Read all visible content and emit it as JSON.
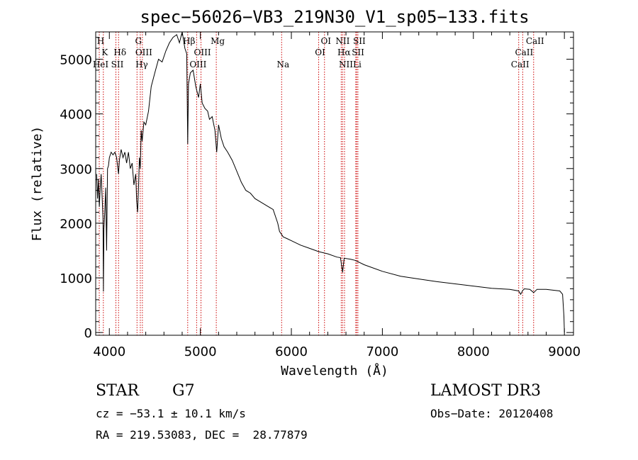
{
  "chart_data": {
    "type": "line",
    "title": "spec−56026−VB3_219N30_V1_sp05−133.fits",
    "xlabel": "Wavelength (Å)",
    "ylabel": "Flux (relative)",
    "xlim": [
      3850,
      9100
    ],
    "ylim": [
      -50,
      5500
    ],
    "x_ticks": [
      4000,
      5000,
      6000,
      7000,
      8000,
      9000
    ],
    "y_ticks": [
      0,
      1000,
      2000,
      3000,
      4000,
      5000
    ],
    "series": [
      {
        "name": "spectrum",
        "x": [
          3860,
          3870,
          3880,
          3890,
          3900,
          3910,
          3920,
          3930,
          3935,
          3940,
          3950,
          3960,
          3970,
          3980,
          3990,
          4000,
          4020,
          4040,
          4060,
          4080,
          4101,
          4110,
          4130,
          4150,
          4170,
          4190,
          4210,
          4230,
          4250,
          4270,
          4290,
          4300,
          4310,
          4320,
          4330,
          4340,
          4350,
          4360,
          4380,
          4400,
          4430,
          4460,
          4500,
          4540,
          4580,
          4620,
          4660,
          4700,
          4740,
          4770,
          4800,
          4830,
          4850,
          4861,
          4870,
          4890,
          4920,
          4950,
          4980,
          5000,
          5020,
          5050,
          5080,
          5100,
          5130,
          5160,
          5180,
          5200,
          5230,
          5260,
          5300,
          5350,
          5400,
          5450,
          5500,
          5550,
          5600,
          5650,
          5700,
          5750,
          5800,
          5850,
          5870,
          5890,
          5910,
          5950,
          6000,
          6100,
          6200,
          6300,
          6400,
          6500,
          6540,
          6563,
          6580,
          6650,
          6700,
          6800,
          7000,
          7200,
          7400,
          7600,
          7800,
          8000,
          8200,
          8400,
          8498,
          8520,
          8542,
          8560,
          8620,
          8662,
          8700,
          8800,
          8900,
          8950,
          8980,
          8995,
          9000
        ],
        "values": [
          2900,
          2450,
          2800,
          2300,
          2650,
          2900,
          2500,
          2100,
          750,
          1900,
          2200,
          2650,
          1500,
          3000,
          3050,
          3200,
          3300,
          3250,
          3300,
          3200,
          2900,
          3150,
          3350,
          3200,
          3300,
          3100,
          3300,
          3000,
          3100,
          2700,
          2900,
          2400,
          2200,
          2600,
          3200,
          3000,
          3700,
          3500,
          3850,
          3800,
          4050,
          4500,
          4750,
          5000,
          4950,
          5150,
          5300,
          5400,
          5450,
          5300,
          5500,
          5200,
          5100,
          3450,
          4550,
          4750,
          4800,
          4500,
          4300,
          4550,
          4200,
          4100,
          4050,
          3900,
          3950,
          3700,
          3300,
          3800,
          3550,
          3400,
          3300,
          3150,
          2950,
          2750,
          2600,
          2550,
          2450,
          2400,
          2350,
          2300,
          2250,
          2000,
          1850,
          1800,
          1750,
          1720,
          1680,
          1600,
          1540,
          1480,
          1440,
          1380,
          1370,
          1100,
          1360,
          1340,
          1320,
          1240,
          1120,
          1030,
          980,
          930,
          890,
          850,
          810,
          790,
          760,
          700,
          770,
          800,
          790,
          730,
          790,
          790,
          770,
          760,
          700,
          300,
          0
        ]
      }
    ],
    "lines": [
      {
        "name": "H",
        "x": 3889,
        "row": 0
      },
      {
        "name": "K",
        "x": 3934,
        "row": 1
      },
      {
        "name": "HeI",
        "x": 3889,
        "row": 2
      },
      {
        "name": "SII",
        "x": 4072,
        "row": 2
      },
      {
        "name": "Hδ",
        "x": 4101,
        "row": 1
      },
      {
        "name": "G",
        "x": 4304,
        "row": 0
      },
      {
        "name": "OIII",
        "x": 4363,
        "row": 1
      },
      {
        "name": "Hγ",
        "x": 4340,
        "row": 2
      },
      {
        "name": "Hβ",
        "x": 4861,
        "row": 0
      },
      {
        "name": "OIII",
        "x": 5007,
        "row": 1
      },
      {
        "name": "OIII",
        "x": 4959,
        "row": 2
      },
      {
        "name": "Mg",
        "x": 5175,
        "row": 0
      },
      {
        "name": "Na",
        "x": 5893,
        "row": 2
      },
      {
        "name": "OI",
        "x": 6364,
        "row": 0
      },
      {
        "name": "OI",
        "x": 6300,
        "row": 1
      },
      {
        "name": "NII",
        "x": 6548,
        "row": 0
      },
      {
        "name": "SII",
        "x": 6731,
        "row": 0
      },
      {
        "name": "Hα",
        "x": 6563,
        "row": 1
      },
      {
        "name": "SII",
        "x": 6717,
        "row": 1
      },
      {
        "name": "NII",
        "x": 6584,
        "row": 2
      },
      {
        "name": "Li",
        "x": 6708,
        "row": 2
      },
      {
        "name": "CaII",
        "x": 8662,
        "row": 0
      },
      {
        "name": "CaII",
        "x": 8542,
        "row": 1
      },
      {
        "name": "CaII",
        "x": 8498,
        "row": 2
      }
    ]
  },
  "info": {
    "class_label": "STAR",
    "subclass": "G7",
    "survey": "LAMOST DR3",
    "velocity": "cz = −53.1 ± 10.1 km/s",
    "obs_date": "Obs−Date: 20120408",
    "coords": "RA = 219.53083, DEC =  28.77879"
  },
  "colors": {
    "line_marker": "#cc0000",
    "spectrum": "#000000"
  }
}
